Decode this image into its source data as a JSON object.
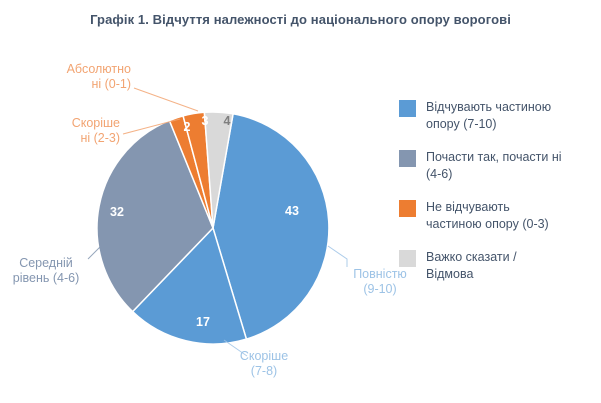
{
  "title": "Графік 1. Відчуття належності до національного опору ворогові",
  "colors": {
    "title": "#44546A",
    "legend_text": "#44546A",
    "background": "#FFFFFF",
    "slice_border": "#FFFFFF"
  },
  "chart_data": {
    "type": "pie",
    "title": "Графік 1. Відчуття належності до національного опору ворогові",
    "total": 100,
    "legend_position": "right",
    "slices": [
      {
        "category": "Повністю (9-10)",
        "value": 43,
        "color": "#5B9BD5",
        "value_label_color": "#FFFFFF",
        "callout": "Повністю\n(9-10)",
        "callout_color": "#9DC3E6"
      },
      {
        "category": "Скоріше (7-8)",
        "value": 17,
        "color": "#5B9BD5",
        "value_label_color": "#FFFFFF",
        "callout": "Скоріше\n(7-8)",
        "callout_color": "#9DC3E6"
      },
      {
        "category": "Середній рівень (4-6)",
        "value": 32,
        "color": "#8496B0",
        "value_label_color": "#FFFFFF",
        "callout": "Середній\nрівень (4-6)",
        "callout_color": "#8496B0"
      },
      {
        "category": "Скоріше ні (2-3)",
        "value": 2,
        "color": "#ED7D31",
        "value_label_color": "#FFFFFF",
        "callout": "Скоріше\nні (2-3)",
        "callout_color": "#F2A472"
      },
      {
        "category": "Абсолютно ні (0-1)",
        "value": 3,
        "color": "#ED7D31",
        "value_label_color": "#FFFFFF",
        "callout": "Абсолютно\nні (0-1)",
        "callout_color": "#F2A472"
      },
      {
        "category": "Важко сказати / Відмова",
        "value": 4,
        "color": "#D9D9D9",
        "value_label_color": "#7F7F7F",
        "callout": "",
        "callout_color": ""
      }
    ],
    "legend": [
      {
        "label": "Відчувають частиною\nопору (7-10)",
        "color": "#5B9BD5"
      },
      {
        "label": "Почасти так, почасти ні\n(4-6)",
        "color": "#8496B0"
      },
      {
        "label": "Не відчувають\nчастиною опору (0-3)",
        "color": "#ED7D31"
      },
      {
        "label": "Важко сказати /\nВідмова",
        "color": "#D9D9D9"
      }
    ]
  }
}
